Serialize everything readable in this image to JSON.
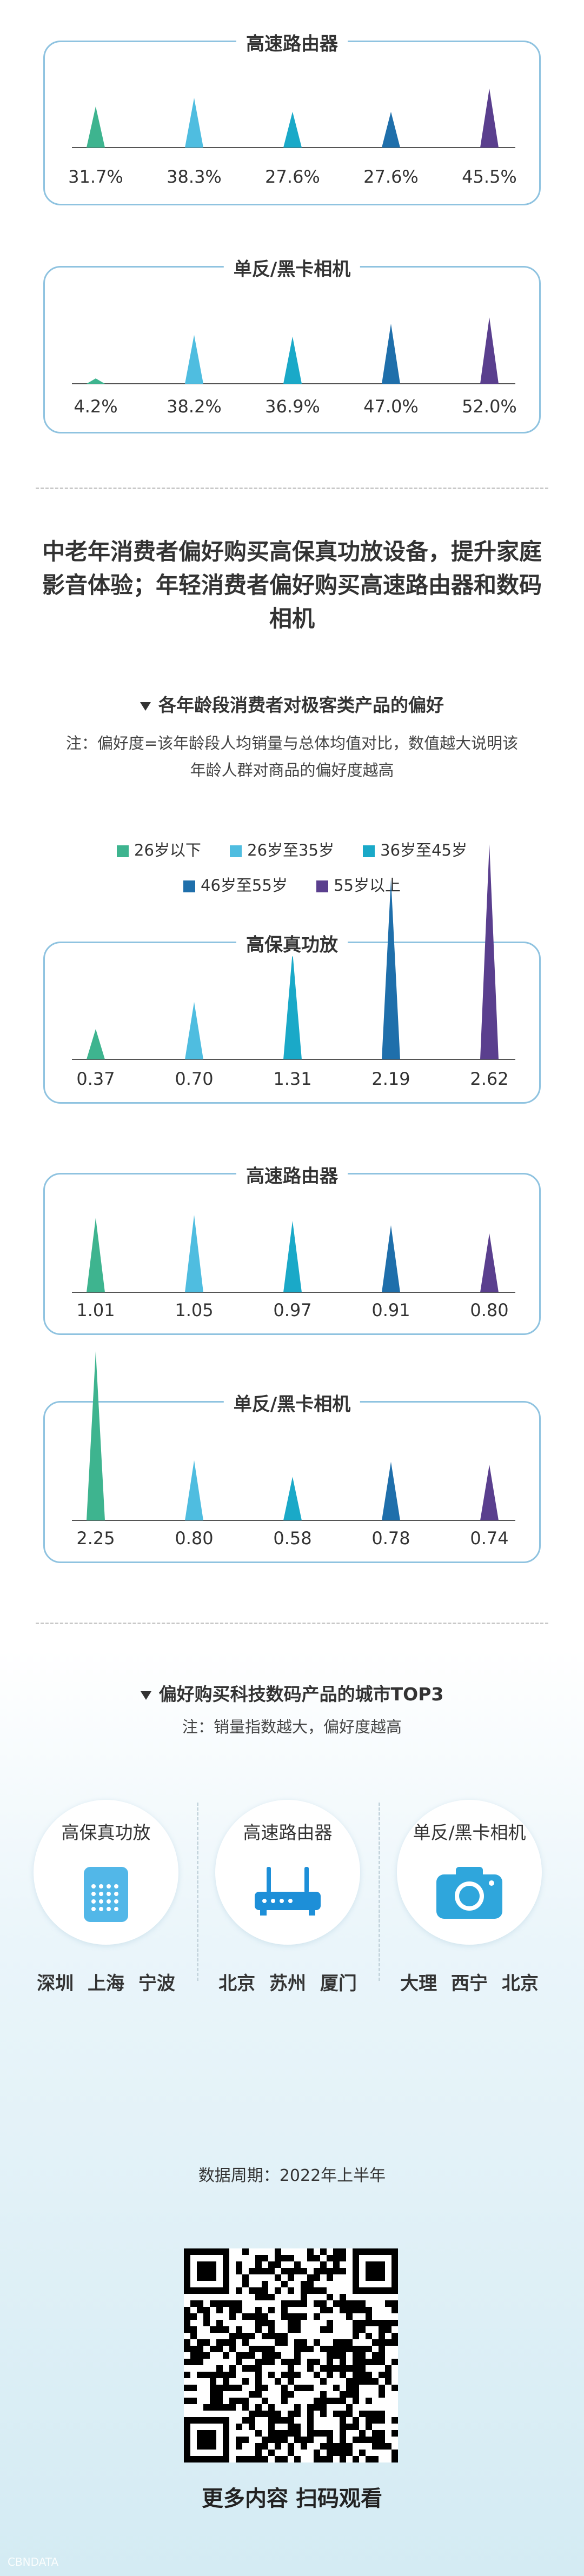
{
  "colors": [
    "#3eb48f",
    "#4fbde0",
    "#1aa9c8",
    "#1f6fab",
    "#5a3f8e"
  ],
  "section1": {
    "charts": [
      {
        "title": "高速路由器",
        "values": [
          31.7,
          38.3,
          27.6,
          27.6,
          45.5
        ],
        "labels": [
          "31.7%",
          "38.3%",
          "27.6%",
          "27.6%",
          "45.5%"
        ]
      },
      {
        "title": "单反/黑卡相机",
        "values": [
          4.2,
          38.2,
          36.9,
          47.0,
          52.0
        ],
        "labels": [
          "4.2%",
          "38.2%",
          "36.9%",
          "47.0%",
          "52.0%"
        ]
      }
    ]
  },
  "headline": "中老年消费者偏好购买高保真功放设备，提升家庭影音体验；年轻消费者偏好购买高速路由器和数码相机",
  "pref_subtitle": "各年龄段消费者对极客类产品的偏好",
  "pref_note": "注：偏好度=该年龄段人均销量与总体均值对比，数值越大说明该年龄人群对商品的偏好度越高",
  "legend": [
    "26岁以下",
    "26岁至35岁",
    "36岁至45岁",
    "46岁至55岁",
    "55岁以上"
  ],
  "chart_data": [
    {
      "type": "bar",
      "title": "高速路由器",
      "categories": [
        "",
        "",
        "",
        "",
        ""
      ],
      "values": [
        31.7,
        38.3,
        27.6,
        27.6,
        45.5
      ],
      "data_labels": [
        "31.7%",
        "38.3%",
        "27.6%",
        "27.6%",
        "45.5%"
      ]
    },
    {
      "type": "bar",
      "title": "单反/黑卡相机",
      "categories": [
        "",
        "",
        "",
        "",
        ""
      ],
      "values": [
        4.2,
        38.2,
        36.9,
        47.0,
        52.0
      ],
      "data_labels": [
        "4.2%",
        "38.2%",
        "36.9%",
        "47.0%",
        "52.0%"
      ]
    },
    {
      "type": "bar",
      "title": "高保真功放",
      "categories": [
        "26岁以下",
        "26岁至35岁",
        "36岁至45岁",
        "46岁至55岁",
        "55岁以上"
      ],
      "values": [
        0.37,
        0.7,
        1.31,
        2.19,
        2.62
      ],
      "data_labels": [
        "0.37",
        "0.70",
        "1.31",
        "2.19",
        "2.62"
      ],
      "legend": "top-center"
    },
    {
      "type": "bar",
      "title": "高速路由器",
      "categories": [
        "26岁以下",
        "26岁至35岁",
        "36岁至45岁",
        "46岁至55岁",
        "55岁以上"
      ],
      "values": [
        1.01,
        1.05,
        0.97,
        0.91,
        0.8
      ],
      "data_labels": [
        "1.01",
        "1.05",
        "0.97",
        "0.91",
        "0.80"
      ]
    },
    {
      "type": "bar",
      "title": "单反/黑卡相机",
      "categories": [
        "26岁以下",
        "26岁至35岁",
        "36岁至45岁",
        "46岁至55岁",
        "55岁以上"
      ],
      "values": [
        2.25,
        0.8,
        0.58,
        0.78,
        0.74
      ],
      "data_labels": [
        "2.25",
        "0.80",
        "0.58",
        "0.78",
        "0.74"
      ]
    }
  ],
  "city_subtitle": "偏好购买科技数码产品的城市TOP3",
  "city_note": "注：销量指数越大，偏好度越高",
  "city_columns": [
    {
      "product": "高保真功放",
      "icon": "amplifier-icon",
      "cities": "深圳 上海 宁波"
    },
    {
      "product": "高速路由器",
      "icon": "router-icon",
      "cities": "北京 苏州 厦门"
    },
    {
      "product": "单反/黑卡相机",
      "icon": "camera-icon",
      "cities": "大理 西宁 北京"
    }
  ],
  "period": "数据周期：2022年上半年",
  "qr_caption": "更多内容 扫码观看",
  "watermark": "CBNDATA"
}
